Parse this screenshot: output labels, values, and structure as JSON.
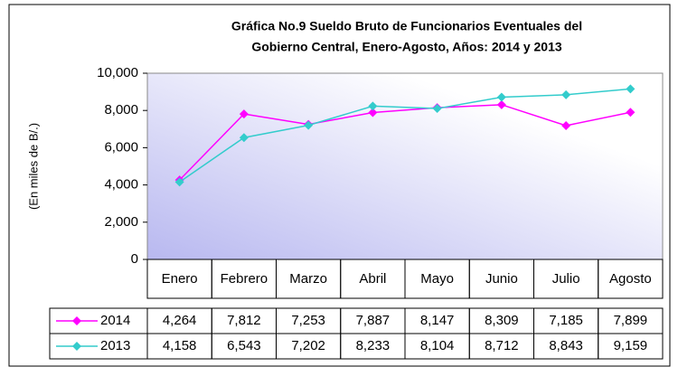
{
  "chart_data": {
    "type": "line",
    "title": "Gráfica No.9 Sueldo Bruto de Funcionarios Eventuales del",
    "subtitle": "Gobierno Central, Enero-Agosto, Años: 2014 y 2013",
    "y_label": "(En miles de B/.)",
    "categories": [
      "Enero",
      "Febrero",
      "Marzo",
      "Abril",
      "Mayo",
      "Junio",
      "Julio",
      "Agosto"
    ],
    "series": [
      {
        "name": "2014",
        "color": "#ff00ff",
        "values": [
          4264,
          7812,
          7253,
          7887,
          8147,
          8309,
          7185,
          7899
        ],
        "value_labels": [
          "4,264",
          "7,812",
          "7,253",
          "7,887",
          "8,147",
          "8,309",
          "7,185",
          "7,899"
        ]
      },
      {
        "name": "2013",
        "color": "#33cccc",
        "values": [
          4158,
          6543,
          7202,
          8233,
          8104,
          8712,
          8843,
          9159
        ],
        "value_labels": [
          "4,158",
          "6,543",
          "7,202",
          "8,233",
          "8,104",
          "8,712",
          "8,843",
          "9,159"
        ]
      }
    ],
    "ylim": [
      0,
      10000
    ],
    "yticks": [
      0,
      {
        "value": 2000,
        "label": "2,000"
      },
      {
        "value": 4000,
        "label": "4,000"
      },
      {
        "value": 6000,
        "label": "6,000"
      },
      {
        "value": 8000,
        "label": "8,000"
      },
      {
        "value": 10000,
        "label": "10,000"
      }
    ],
    "data_table": true
  }
}
